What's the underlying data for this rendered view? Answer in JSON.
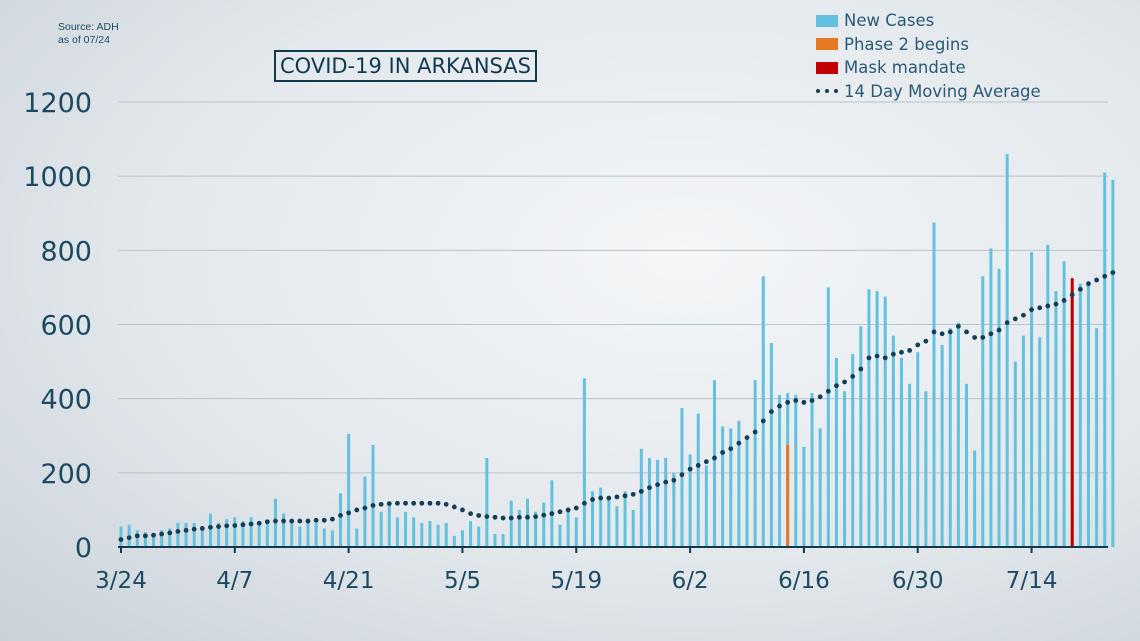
{
  "source": "Source: ADH",
  "as_of": "as of 07/24",
  "colors": {
    "new_cases": "#62c1df",
    "phase2": "#e87722",
    "mask": "#c00000",
    "moving_avg": "#123f55",
    "axis_text": "#1c4a63",
    "grid": "#b9c3ca"
  },
  "legend": {
    "new_cases": "New Cases",
    "phase2": "Phase 2 begins",
    "mask": "Mask mandate",
    "moving_avg": "14 Day Moving Average"
  },
  "chart_data": {
    "type": "bar",
    "title": "COVID-19 IN ARKANSAS",
    "xlabel": "",
    "ylabel": "",
    "ylim": [
      0,
      1200
    ],
    "yticks": [
      0,
      200,
      400,
      600,
      800,
      1000,
      1200
    ],
    "xtick_labels": [
      "3/24",
      "4/7",
      "4/21",
      "5/5",
      "5/19",
      "6/2",
      "6/16",
      "6/30",
      "7/14"
    ],
    "xtick_day_index": [
      0,
      14,
      28,
      42,
      56,
      70,
      84,
      98,
      112
    ],
    "start_date": "3/24",
    "grid": true,
    "legend_position": "top-right",
    "series": [
      {
        "name": "New Cases",
        "values": [
          55,
          60,
          45,
          40,
          30,
          45,
          50,
          65,
          65,
          65,
          50,
          90,
          65,
          75,
          80,
          70,
          80,
          60,
          70,
          130,
          90,
          75,
          55,
          70,
          65,
          50,
          45,
          145,
          305,
          50,
          190,
          275,
          95,
          120,
          80,
          95,
          80,
          65,
          70,
          60,
          65,
          30,
          45,
          70,
          55,
          240,
          35,
          35,
          125,
          100,
          130,
          95,
          120,
          180,
          60,
          105,
          80,
          455,
          150,
          160,
          130,
          110,
          150,
          100,
          265,
          240,
          235,
          240,
          200,
          375,
          250,
          360,
          220,
          450,
          325,
          320,
          340,
          300,
          450,
          730,
          550,
          410,
          415,
          410,
          270,
          415,
          320,
          700,
          510,
          420,
          520,
          595,
          695,
          690,
          675,
          570,
          510,
          440,
          525,
          420,
          875,
          545,
          590,
          605,
          440,
          260,
          730,
          805,
          750,
          1060,
          500,
          570,
          795,
          565,
          815,
          690,
          770,
          690,
          710,
          705,
          590,
          1010,
          990
        ]
      },
      {
        "name": "14 Day Moving Average",
        "values": [
          20,
          25,
          30,
          30,
          32,
          35,
          38,
          42,
          45,
          48,
          50,
          53,
          55,
          57,
          58,
          60,
          62,
          64,
          68,
          70,
          70,
          70,
          70,
          70,
          72,
          72,
          75,
          85,
          92,
          100,
          105,
          112,
          115,
          117,
          118,
          118,
          118,
          118,
          118,
          118,
          115,
          108,
          100,
          90,
          85,
          82,
          80,
          78,
          78,
          80,
          80,
          82,
          86,
          90,
          95,
          100,
          105,
          118,
          128,
          132,
          132,
          135,
          138,
          142,
          150,
          160,
          168,
          175,
          180,
          195,
          210,
          220,
          230,
          240,
          255,
          265,
          280,
          295,
          310,
          340,
          365,
          380,
          390,
          395,
          390,
          395,
          405,
          420,
          435,
          445,
          460,
          480,
          510,
          515,
          510,
          520,
          525,
          530,
          545,
          555,
          580,
          575,
          580,
          595,
          580,
          565,
          565,
          575,
          585,
          605,
          615,
          625,
          640,
          645,
          650,
          655,
          665,
          680,
          695,
          710,
          720,
          730,
          740
        ]
      }
    ],
    "phase2_day_index": 82,
    "phase2_value": 275,
    "mask_day_index": 117,
    "mask_value": 725
  }
}
